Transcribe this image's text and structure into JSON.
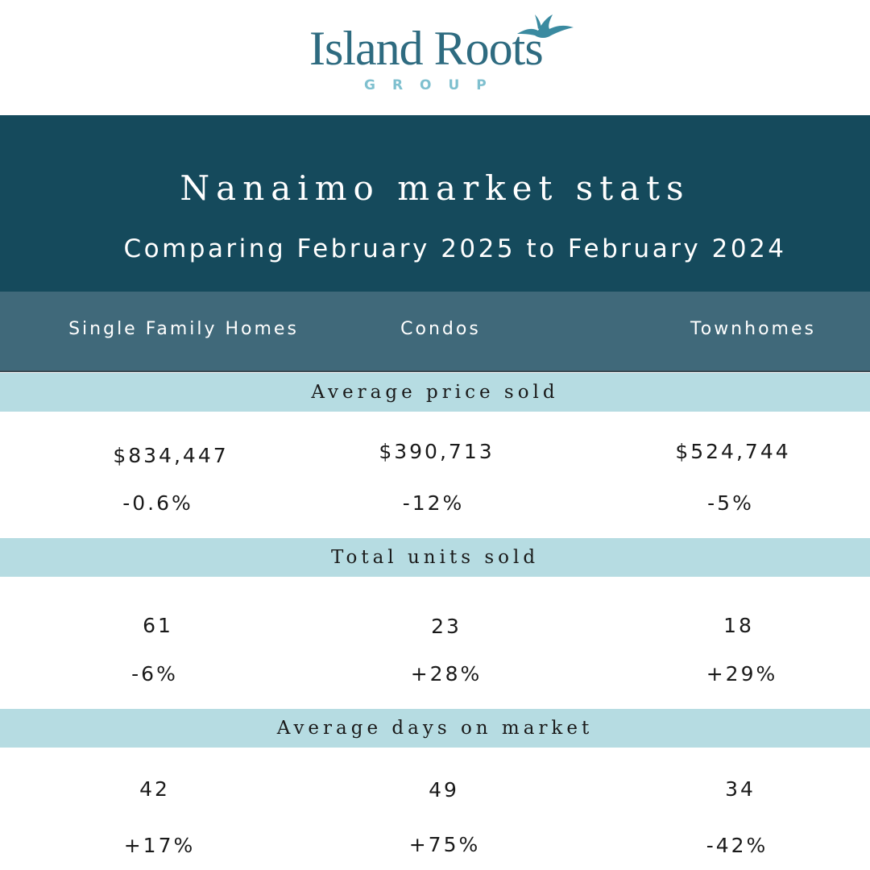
{
  "brand": {
    "name": "Island Roots",
    "sub": "GROUP",
    "color": "#2e6b80",
    "sub_color": "#7fc0cf"
  },
  "header": {
    "title": "Nanaimo market stats",
    "subtitle": "Comparing February 2025 to February 2024"
  },
  "columns": [
    "Single Family Homes",
    "Condos",
    "Townhomes"
  ],
  "sections": [
    {
      "label": "Average price sold",
      "values": [
        "$834,447",
        "$390,713",
        "$524,744"
      ],
      "changes": [
        "-0.6%",
        "-12%",
        "-5%"
      ]
    },
    {
      "label": "Total units sold",
      "values": [
        "61",
        "23",
        "18"
      ],
      "changes": [
        "-6%",
        "+28%",
        "+29%"
      ]
    },
    {
      "label": "Average days on market",
      "values": [
        "42",
        "49",
        "34"
      ],
      "changes": [
        "+17%",
        "+75%",
        "-42%"
      ]
    }
  ],
  "colors": {
    "header_bg": "#154a5c",
    "column_band_bg": "#40697a",
    "section_band_bg": "#b6dce2"
  }
}
